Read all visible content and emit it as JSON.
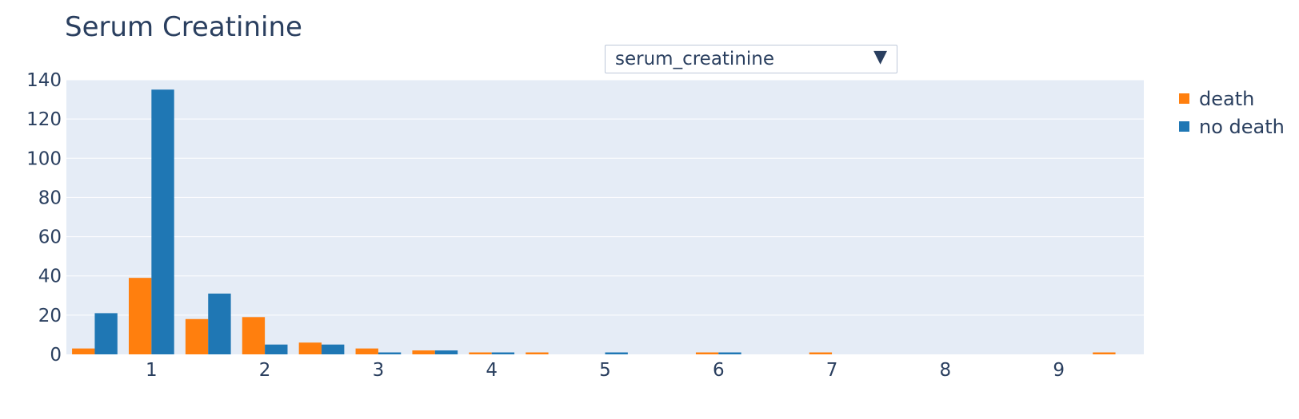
{
  "header": {
    "title": "Serum Creatinine"
  },
  "dropdown": {
    "selected": "serum_creatinine",
    "arrow": "▼"
  },
  "colors": {
    "death": "#ff7f0e",
    "no_death": "#1f77b4",
    "plot_bg": "#e5ecf6",
    "grid": "#ffffff",
    "text": "#2a3f5f"
  },
  "chart_data": {
    "type": "bar",
    "title": "Serum Creatinine",
    "xlabel": "",
    "ylabel": "",
    "bin_start": 0.25,
    "bin_width": 0.5,
    "xlim": [
      0.25,
      9.75
    ],
    "ylim": [
      0,
      140
    ],
    "xticks": [
      1,
      2,
      3,
      4,
      5,
      6,
      7,
      8,
      9
    ],
    "yticks": [
      0,
      20,
      40,
      60,
      80,
      100,
      120,
      140
    ],
    "legend_position": "top-right",
    "grid": true,
    "series": [
      {
        "name": "death",
        "color": "#ff7f0e",
        "values": [
          3,
          39,
          18,
          19,
          6,
          3,
          2,
          1,
          1,
          0,
          0,
          1,
          0,
          1,
          0,
          0,
          0,
          0,
          1
        ]
      },
      {
        "name": "no death",
        "color": "#1f77b4",
        "values": [
          21,
          135,
          31,
          5,
          5,
          1,
          2,
          1,
          0,
          1,
          0,
          1,
          0,
          0,
          0,
          0,
          0,
          0,
          0
        ]
      }
    ]
  }
}
